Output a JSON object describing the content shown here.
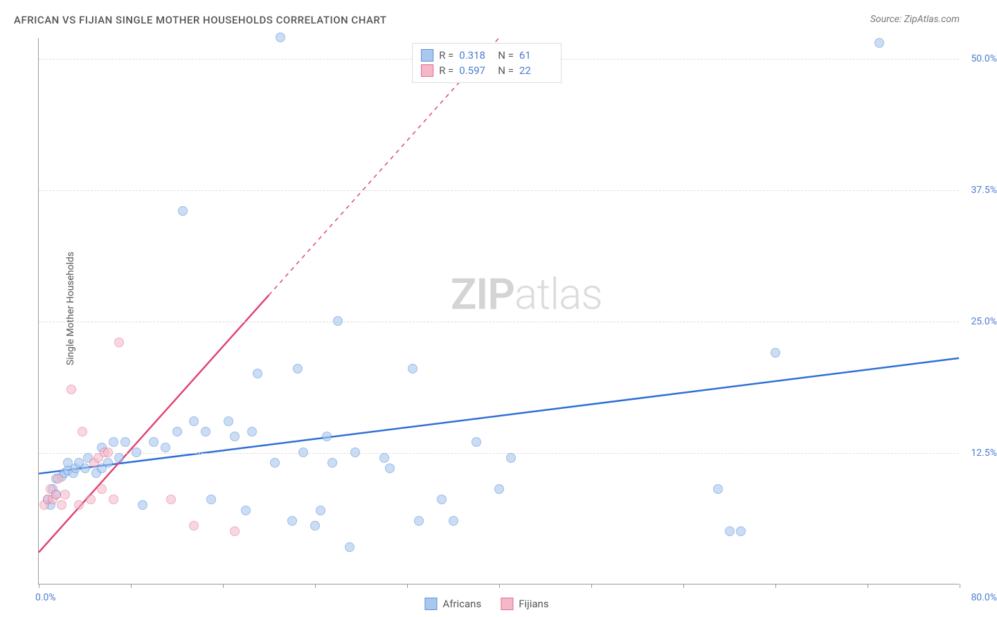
{
  "title": "AFRICAN VS FIJIAN SINGLE MOTHER HOUSEHOLDS CORRELATION CHART",
  "source": "Source: ZipAtlas.com",
  "y_axis_title": "Single Mother Households",
  "watermark_zip": "ZIP",
  "watermark_atlas": "atlas",
  "chart": {
    "type": "scatter",
    "xlim": [
      0,
      80
    ],
    "ylim": [
      0,
      52
    ],
    "x_ticks": [
      0,
      8,
      16,
      24,
      32,
      40,
      48,
      56,
      64,
      72,
      80
    ],
    "y_gridlines": [
      12.5,
      25.0,
      37.5,
      50.0
    ],
    "y_tick_labels": [
      "12.5%",
      "25.0%",
      "37.5%",
      "50.0%"
    ],
    "x_min_label": "0.0%",
    "x_max_label": "80.0%",
    "background_color": "#ffffff",
    "grid_color": "#dddddd",
    "axis_color": "#999999"
  },
  "series": [
    {
      "name": "Africans",
      "label": "Africans",
      "marker_fill": "#a8c8f0",
      "marker_stroke": "#5b8fd6",
      "marker_opacity": 0.6,
      "marker_size": 14,
      "trend_color": "#2e6fd6",
      "trend_width": 2.5,
      "trend_start": {
        "x": 0,
        "y": 10.5
      },
      "trend_end": {
        "x": 80,
        "y": 21.5
      },
      "R": "0.318",
      "N": "61",
      "points": [
        {
          "x": 0.8,
          "y": 8.0
        },
        {
          "x": 1.0,
          "y": 7.5
        },
        {
          "x": 1.2,
          "y": 9.0
        },
        {
          "x": 1.5,
          "y": 8.5
        },
        {
          "x": 1.5,
          "y": 10.0
        },
        {
          "x": 2.0,
          "y": 10.2
        },
        {
          "x": 2.2,
          "y": 10.5
        },
        {
          "x": 2.5,
          "y": 10.8
        },
        {
          "x": 2.5,
          "y": 11.5
        },
        {
          "x": 3.0,
          "y": 10.5
        },
        {
          "x": 3.2,
          "y": 11.0
        },
        {
          "x": 3.5,
          "y": 11.5
        },
        {
          "x": 4.0,
          "y": 11.0
        },
        {
          "x": 4.3,
          "y": 12.0
        },
        {
          "x": 5.0,
          "y": 10.5
        },
        {
          "x": 5.5,
          "y": 13.0
        },
        {
          "x": 5.5,
          "y": 11.0
        },
        {
          "x": 6.0,
          "y": 11.5
        },
        {
          "x": 6.5,
          "y": 13.5
        },
        {
          "x": 7.0,
          "y": 12.0
        },
        {
          "x": 7.5,
          "y": 13.5
        },
        {
          "x": 8.5,
          "y": 12.5
        },
        {
          "x": 9.0,
          "y": 7.5
        },
        {
          "x": 10.0,
          "y": 13.5
        },
        {
          "x": 11.0,
          "y": 13.0
        },
        {
          "x": 12.0,
          "y": 14.5
        },
        {
          "x": 12.5,
          "y": 35.5
        },
        {
          "x": 13.5,
          "y": 15.5
        },
        {
          "x": 14.5,
          "y": 14.5
        },
        {
          "x": 15.0,
          "y": 8.0
        },
        {
          "x": 16.5,
          "y": 15.5
        },
        {
          "x": 17.0,
          "y": 14.0
        },
        {
          "x": 18.0,
          "y": 7.0
        },
        {
          "x": 18.5,
          "y": 14.5
        },
        {
          "x": 19.0,
          "y": 20.0
        },
        {
          "x": 20.5,
          "y": 11.5
        },
        {
          "x": 21.0,
          "y": 52.0
        },
        {
          "x": 22.0,
          "y": 6.0
        },
        {
          "x": 22.5,
          "y": 20.5
        },
        {
          "x": 23.0,
          "y": 12.5
        },
        {
          "x": 24.0,
          "y": 5.5
        },
        {
          "x": 24.5,
          "y": 7.0
        },
        {
          "x": 25.0,
          "y": 14.0
        },
        {
          "x": 25.5,
          "y": 11.5
        },
        {
          "x": 26.0,
          "y": 25.0
        },
        {
          "x": 27.0,
          "y": 3.5
        },
        {
          "x": 27.5,
          "y": 12.5
        },
        {
          "x": 30.0,
          "y": 12.0
        },
        {
          "x": 30.5,
          "y": 11.0
        },
        {
          "x": 32.5,
          "y": 20.5
        },
        {
          "x": 33.0,
          "y": 6.0
        },
        {
          "x": 35.0,
          "y": 8.0
        },
        {
          "x": 36.0,
          "y": 6.0
        },
        {
          "x": 38.0,
          "y": 13.5
        },
        {
          "x": 40.0,
          "y": 9.0
        },
        {
          "x": 41.0,
          "y": 12.0
        },
        {
          "x": 59.0,
          "y": 9.0
        },
        {
          "x": 60.0,
          "y": 5.0
        },
        {
          "x": 61.0,
          "y": 5.0
        },
        {
          "x": 64.0,
          "y": 22.0
        },
        {
          "x": 73.0,
          "y": 51.5
        }
      ]
    },
    {
      "name": "Fijians",
      "label": "Fijians",
      "marker_fill": "#f5b8c8",
      "marker_stroke": "#e06b8f",
      "marker_opacity": 0.55,
      "marker_size": 14,
      "trend_color": "#e04572",
      "trend_width": 2.5,
      "trend_start": {
        "x": 0,
        "y": 3.0
      },
      "trend_end_solid": {
        "x": 20,
        "y": 27.5
      },
      "trend_end_dashed": {
        "x": 40,
        "y": 52.0
      },
      "R": "0.597",
      "N": "22",
      "points": [
        {
          "x": 0.5,
          "y": 7.5
        },
        {
          "x": 0.8,
          "y": 8.0
        },
        {
          "x": 1.0,
          "y": 9.0
        },
        {
          "x": 1.2,
          "y": 8.0
        },
        {
          "x": 1.5,
          "y": 8.5
        },
        {
          "x": 1.7,
          "y": 10.0
        },
        {
          "x": 2.0,
          "y": 7.5
        },
        {
          "x": 2.3,
          "y": 8.5
        },
        {
          "x": 2.8,
          "y": 18.5
        },
        {
          "x": 3.5,
          "y": 7.5
        },
        {
          "x": 3.8,
          "y": 14.5
        },
        {
          "x": 4.5,
          "y": 8.0
        },
        {
          "x": 4.8,
          "y": 11.5
        },
        {
          "x": 5.2,
          "y": 12.0
        },
        {
          "x": 5.5,
          "y": 9.0
        },
        {
          "x": 5.7,
          "y": 12.5
        },
        {
          "x": 6.0,
          "y": 12.5
        },
        {
          "x": 6.5,
          "y": 8.0
        },
        {
          "x": 7.0,
          "y": 23.0
        },
        {
          "x": 11.5,
          "y": 8.0
        },
        {
          "x": 13.5,
          "y": 5.5
        },
        {
          "x": 17.0,
          "y": 5.0
        }
      ]
    }
  ],
  "legend_top": {
    "R_label": "R  =",
    "N_label": "N  ="
  },
  "legend_bottom": [
    {
      "label": "Africans",
      "fill": "#a8c8f0",
      "stroke": "#5b8fd6"
    },
    {
      "label": "Fijians",
      "fill": "#f5b8c8",
      "stroke": "#e06b8f"
    }
  ]
}
